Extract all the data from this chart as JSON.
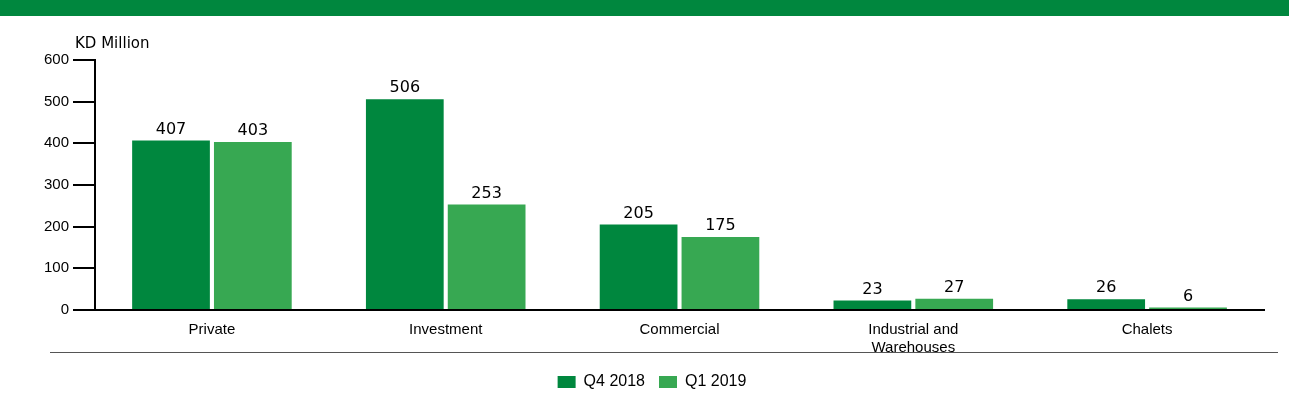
{
  "chart_data": {
    "type": "bar",
    "ylabel": "KD Million",
    "categories": [
      "Private",
      "Investment",
      "Commercial",
      "Industrial and Warehouses",
      "Chalets"
    ],
    "series": [
      {
        "name": "Q4 2018",
        "color": "#00873e",
        "values": [
          407,
          506,
          205,
          23,
          26
        ]
      },
      {
        "name": "Q1 2019",
        "color": "#37a852",
        "values": [
          403,
          253,
          175,
          27,
          6
        ]
      }
    ],
    "ylim": [
      0,
      600
    ],
    "yticks": [
      0,
      100,
      200,
      300,
      400,
      500,
      600
    ],
    "grid": false,
    "legend": "bottom",
    "data_labels": true
  }
}
